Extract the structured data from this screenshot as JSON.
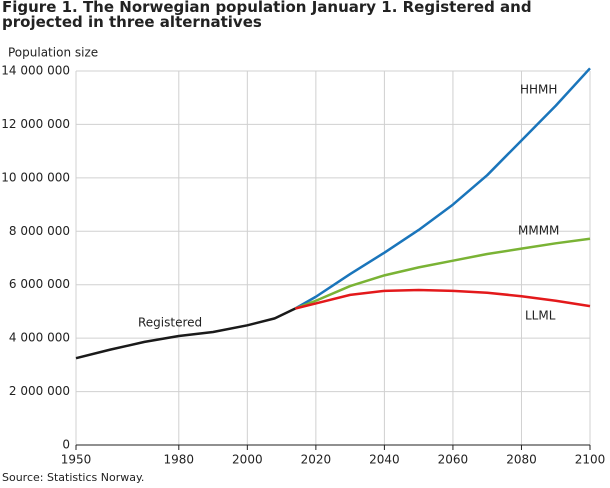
{
  "chart_data": {
    "type": "line",
    "title": "Figure 1. The Norwegian population January 1. Registered and projected in three alternatives",
    "y_label": "Population size",
    "source": "Source: Statistics Norway.",
    "x": [
      1950,
      1960,
      1970,
      1980,
      1990,
      2000,
      2008,
      2014,
      2020,
      2030,
      2040,
      2050,
      2060,
      2070,
      2080,
      2090,
      2100
    ],
    "series": [
      {
        "name": "Registered",
        "color": "#1a1a1a",
        "values": [
          3250000,
          3570000,
          3860000,
          4080000,
          4230000,
          4480000,
          4740000,
          5110000,
          null,
          null,
          null,
          null,
          null,
          null,
          null,
          null,
          null
        ]
      },
      {
        "name": "HHMH",
        "color": "#1a75bb",
        "values": [
          null,
          null,
          null,
          null,
          null,
          null,
          null,
          5110000,
          5550000,
          6400000,
          7200000,
          8050000,
          9000000,
          10100000,
          11400000,
          12700000,
          14100000
        ]
      },
      {
        "name": "MMMM",
        "color": "#7ab335",
        "values": [
          null,
          null,
          null,
          null,
          null,
          null,
          null,
          5110000,
          5400000,
          5950000,
          6350000,
          6650000,
          6900000,
          7150000,
          7350000,
          7550000,
          7720000
        ]
      },
      {
        "name": "LLML",
        "color": "#e3191b",
        "values": [
          null,
          null,
          null,
          null,
          null,
          null,
          null,
          5110000,
          5300000,
          5620000,
          5770000,
          5800000,
          5770000,
          5700000,
          5570000,
          5400000,
          5200000
        ]
      }
    ],
    "xlim": [
      1950,
      2100
    ],
    "xticks": [
      1950,
      1980,
      2000,
      2020,
      2040,
      2060,
      2080,
      2100
    ],
    "ylim": [
      0,
      14000000
    ],
    "yticks": [
      0,
      {
        "value": 2000000,
        "label": "2 000 000"
      },
      {
        "value": 4000000,
        "label": "4 000 000"
      },
      {
        "value": 6000000,
        "label": "6 000 000"
      },
      {
        "value": 8000000,
        "label": "8 000 000"
      },
      {
        "value": 10000000,
        "label": "10 000 000"
      },
      {
        "value": 12000000,
        "label": "12 000 000"
      },
      {
        "value": 14000000,
        "label": "14 000 000"
      }
    ],
    "grid": true
  }
}
